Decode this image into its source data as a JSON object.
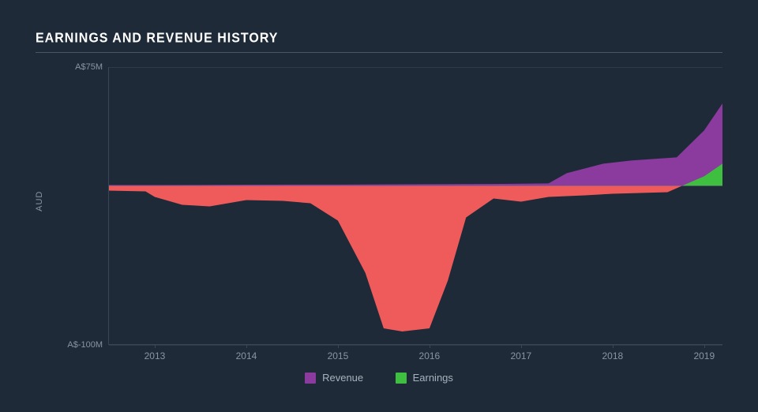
{
  "title": "EARNINGS AND REVENUE HISTORY",
  "y_axis": {
    "title": "AUD",
    "min": -100,
    "max": 75,
    "ticks": [
      {
        "value": 75,
        "label": "A$75M"
      },
      {
        "value": -100,
        "label": "A$-100M"
      }
    ]
  },
  "x_axis": {
    "min": 2012.5,
    "max": 2019.2,
    "ticks": [
      2013,
      2014,
      2015,
      2016,
      2017,
      2018,
      2019
    ]
  },
  "series": {
    "revenue": {
      "label": "Revenue",
      "color": "#8b3a9e",
      "points": [
        [
          2012.5,
          0.5
        ],
        [
          2013.0,
          0.5
        ],
        [
          2014.0,
          0.7
        ],
        [
          2015.0,
          0.8
        ],
        [
          2016.0,
          1.0
        ],
        [
          2016.8,
          1.2
        ],
        [
          2017.3,
          1.5
        ],
        [
          2017.5,
          8.0
        ],
        [
          2017.9,
          14.0
        ],
        [
          2018.2,
          16.0
        ],
        [
          2018.7,
          18.0
        ],
        [
          2019.0,
          35.0
        ],
        [
          2019.2,
          52.0
        ]
      ]
    },
    "earnings": {
      "label": "Earnings",
      "color": "#3fbf3f",
      "points": [
        [
          2012.5,
          -3.0
        ],
        [
          2012.9,
          -3.5
        ],
        [
          2013.0,
          -7.0
        ],
        [
          2013.3,
          -12.0
        ],
        [
          2013.6,
          -13.0
        ],
        [
          2014.0,
          -9.0
        ],
        [
          2014.4,
          -9.5
        ],
        [
          2014.7,
          -11.0
        ],
        [
          2015.0,
          -22.0
        ],
        [
          2015.3,
          -55.0
        ],
        [
          2015.5,
          -90.0
        ],
        [
          2015.7,
          -92.0
        ],
        [
          2016.0,
          -90.0
        ],
        [
          2016.2,
          -60.0
        ],
        [
          2016.4,
          -20.0
        ],
        [
          2016.7,
          -8.0
        ],
        [
          2017.0,
          -10.0
        ],
        [
          2017.3,
          -7.0
        ],
        [
          2017.7,
          -6.0
        ],
        [
          2018.0,
          -5.0
        ],
        [
          2018.3,
          -4.5
        ],
        [
          2018.6,
          -4.0
        ],
        [
          2018.8,
          1.0
        ],
        [
          2019.0,
          6.0
        ],
        [
          2019.2,
          14.0
        ]
      ]
    }
  },
  "colors": {
    "background": "#1e2a38",
    "negative_fill": "#ef5b5b",
    "text_muted": "#8a95a2",
    "grid": "#2e3a48",
    "axis": "#3a4654",
    "zero_line": "#6a7682"
  },
  "legend_order": [
    "revenue",
    "earnings"
  ],
  "chart_type": "area"
}
